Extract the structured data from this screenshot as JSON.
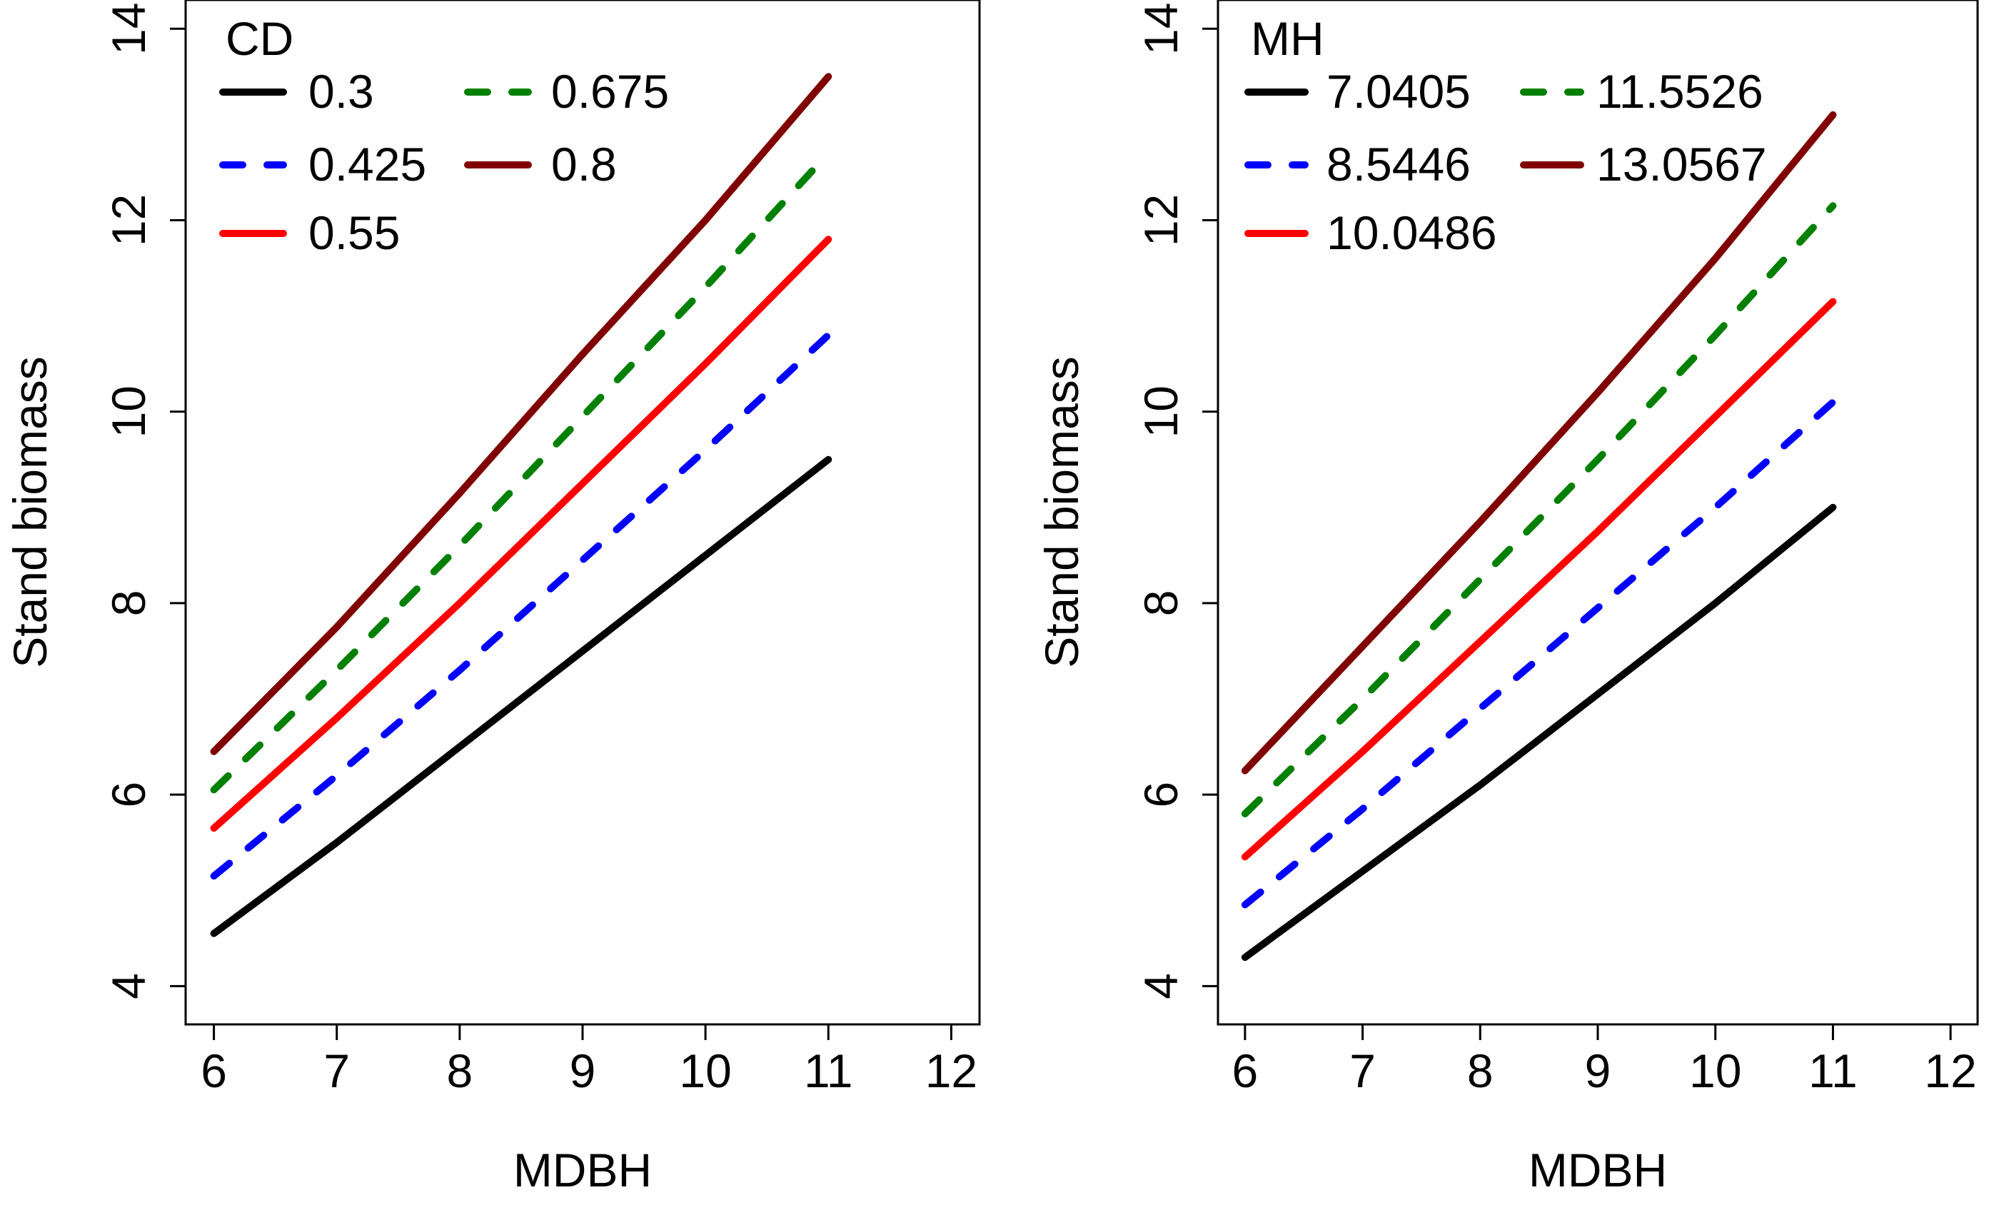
{
  "chart_data": [
    {
      "type": "line",
      "title": "",
      "xlabel": "MDBH",
      "ylabel": "Stand biomass",
      "xlim": [
        5.77,
        12.23
      ],
      "ylim": [
        3.6,
        14.3
      ],
      "xticks": [
        6,
        7,
        8,
        9,
        10,
        11,
        12
      ],
      "yticks": [
        4,
        6,
        8,
        10,
        12,
        14
      ],
      "grid": false,
      "legend_title": "CD",
      "legend_position": "top-left",
      "series": [
        {
          "name": "0.3",
          "color": "#000000",
          "dash": "solid",
          "x": [
            6,
            7,
            8,
            9,
            10,
            11
          ],
          "values": [
            4.55,
            5.5,
            6.5,
            7.5,
            8.5,
            9.5
          ]
        },
        {
          "name": "0.425",
          "color": "#0000ff",
          "dash": "dashed",
          "x": [
            6,
            7,
            8,
            9,
            10,
            11
          ],
          "values": [
            5.15,
            6.2,
            7.3,
            8.45,
            9.6,
            10.8
          ]
        },
        {
          "name": "0.55",
          "color": "#ff0000",
          "dash": "solid",
          "x": [
            6,
            7,
            8,
            9,
            10,
            11
          ],
          "values": [
            5.65,
            6.8,
            8.0,
            9.25,
            10.5,
            11.8
          ]
        },
        {
          "name": "0.675",
          "color": "#008000",
          "dash": "dashed",
          "x": [
            6,
            7,
            8,
            9,
            10,
            11
          ],
          "values": [
            6.05,
            7.3,
            8.6,
            9.95,
            11.3,
            12.7
          ]
        },
        {
          "name": "0.8",
          "color": "#800000",
          "dash": "solid",
          "x": [
            6,
            7,
            8,
            9,
            10,
            11
          ],
          "values": [
            6.45,
            7.75,
            9.15,
            10.6,
            12.0,
            13.5
          ]
        }
      ]
    },
    {
      "type": "line",
      "title": "",
      "xlabel": "MDBH",
      "ylabel": "Stand biomass",
      "xlim": [
        5.77,
        12.23
      ],
      "ylim": [
        3.6,
        14.3
      ],
      "xticks": [
        6,
        7,
        8,
        9,
        10,
        11,
        12
      ],
      "yticks": [
        4,
        6,
        8,
        10,
        12,
        14
      ],
      "grid": false,
      "legend_title": "MH",
      "legend_position": "top-left",
      "series": [
        {
          "name": "7.0405",
          "color": "#000000",
          "dash": "solid",
          "x": [
            6,
            7,
            8,
            9,
            10,
            11
          ],
          "values": [
            4.3,
            5.2,
            6.1,
            7.05,
            8.0,
            9.0
          ]
        },
        {
          "name": "8.5446",
          "color": "#0000ff",
          "dash": "dashed",
          "x": [
            6,
            7,
            8,
            9,
            10,
            11
          ],
          "values": [
            4.85,
            5.85,
            6.9,
            7.95,
            9.0,
            10.1
          ]
        },
        {
          "name": "10.0486",
          "color": "#ff0000",
          "dash": "solid",
          "x": [
            6,
            7,
            8,
            9,
            10,
            11
          ],
          "values": [
            5.35,
            6.45,
            7.6,
            8.75,
            9.95,
            11.15
          ]
        },
        {
          "name": "11.5526",
          "color": "#008000",
          "dash": "dashed",
          "x": [
            6,
            7,
            8,
            9,
            10,
            11
          ],
          "values": [
            5.8,
            7.0,
            8.25,
            9.5,
            10.8,
            12.15
          ]
        },
        {
          "name": "13.0567",
          "color": "#800000",
          "dash": "solid",
          "x": [
            6,
            7,
            8,
            9,
            10,
            11
          ],
          "values": [
            6.25,
            7.55,
            8.85,
            10.2,
            11.6,
            13.1
          ]
        }
      ]
    }
  ]
}
